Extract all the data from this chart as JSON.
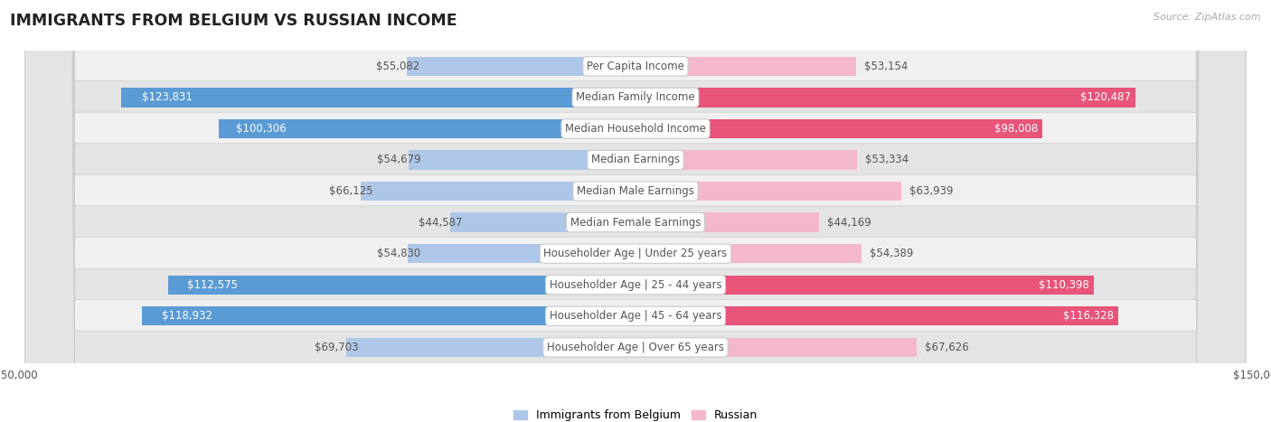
{
  "title": "IMMIGRANTS FROM BELGIUM VS RUSSIAN INCOME",
  "source": "Source: ZipAtlas.com",
  "categories": [
    "Per Capita Income",
    "Median Family Income",
    "Median Household Income",
    "Median Earnings",
    "Median Male Earnings",
    "Median Female Earnings",
    "Householder Age | Under 25 years",
    "Householder Age | 25 - 44 years",
    "Householder Age | 45 - 64 years",
    "Householder Age | Over 65 years"
  ],
  "belgium_values": [
    55082,
    123831,
    100306,
    54679,
    66125,
    44587,
    54830,
    112575,
    118932,
    69703
  ],
  "russian_values": [
    53154,
    120487,
    98008,
    53334,
    63939,
    44169,
    54389,
    110398,
    116328,
    67626
  ],
  "belgium_color_light": "#aec6e8",
  "belgium_color_dark": "#5b9bd5",
  "russian_color_light": "#f4b8cb",
  "russian_color_dark": "#e8547a",
  "inside_label_threshold": 80000,
  "max_value": 150000,
  "bar_height": 0.62,
  "row_bg_light": "#f0f0f0",
  "row_bg_dark": "#e4e4e4",
  "value_fontsize": 8.5,
  "label_fontsize": 8.5,
  "title_fontsize": 12.5,
  "legend_fontsize": 9
}
